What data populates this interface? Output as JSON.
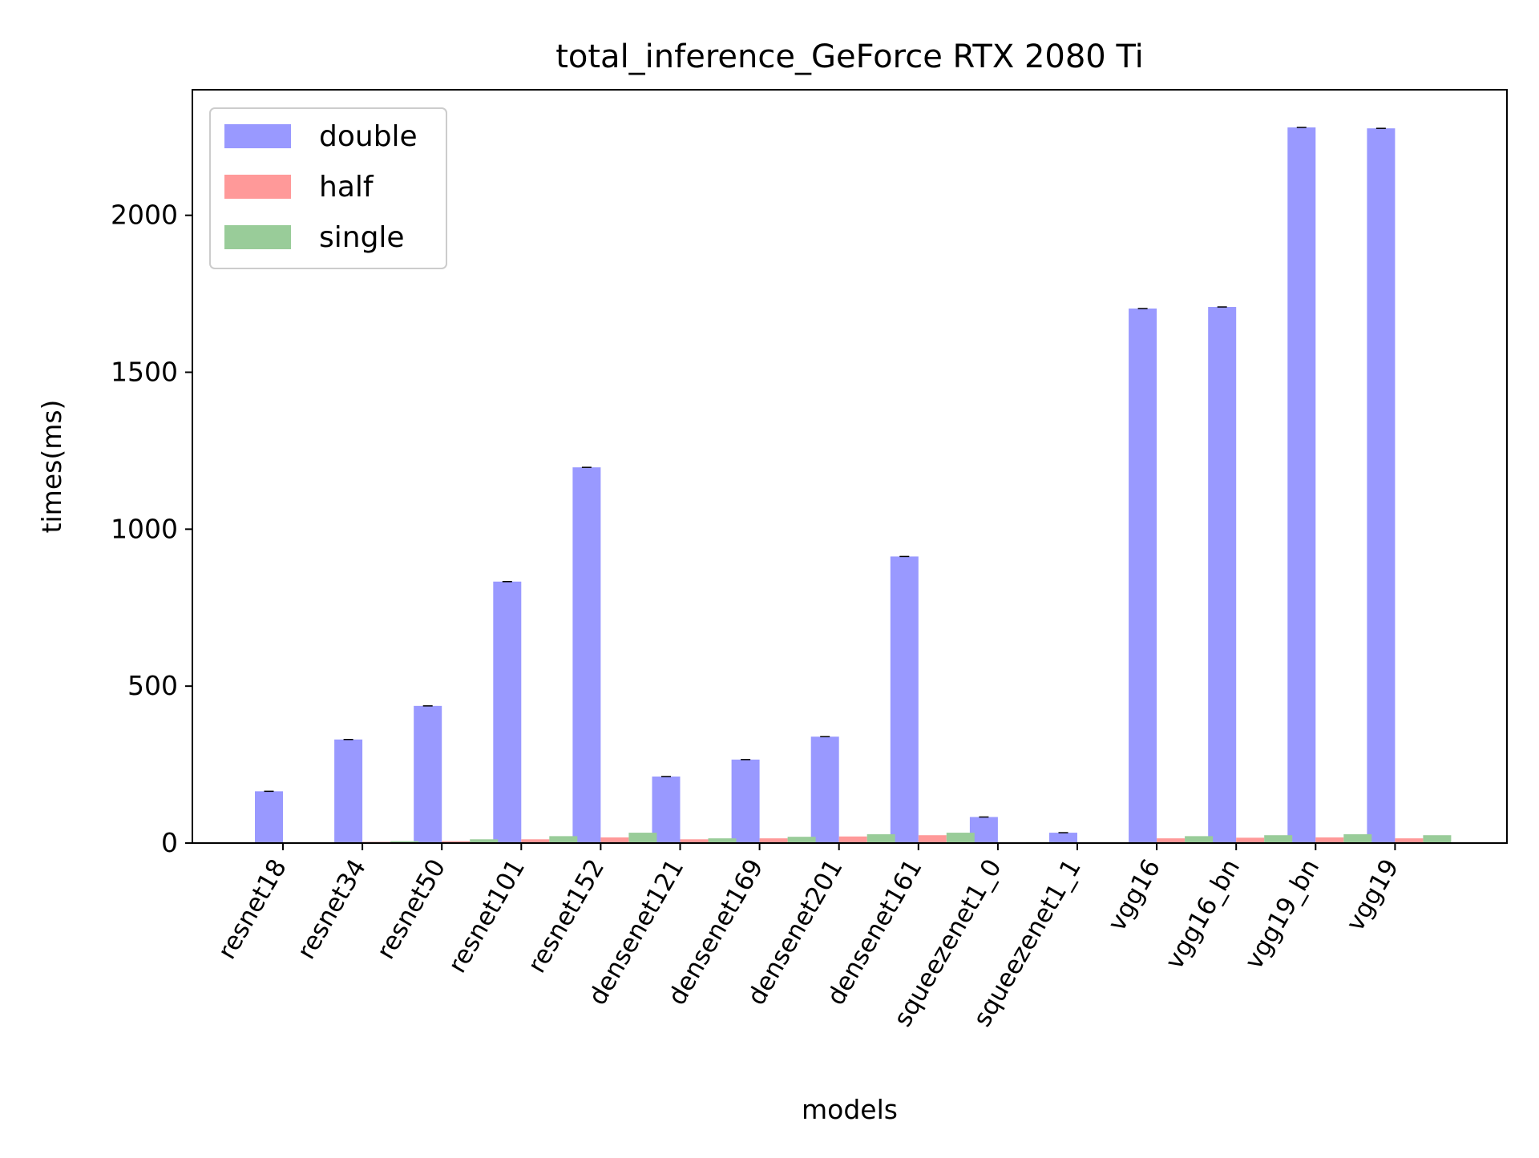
{
  "chart_data": {
    "type": "bar",
    "title": "total_inference_GeForce RTX 2080 Ti",
    "xlabel": "models",
    "ylabel": "times(ms)",
    "ylim": [
      0,
      2400
    ],
    "yticks": [
      0,
      500,
      1000,
      1500,
      2000
    ],
    "grid": false,
    "legend_position": "top-left",
    "categories": [
      "resnet18",
      "resnet34",
      "resnet50",
      "resnet101",
      "resnet152",
      "densenet121",
      "densenet169",
      "densenet201",
      "densenet161",
      "squeezenet1_0",
      "squeezenet1_1",
      "vgg16",
      "vgg16_bn",
      "vgg19_bn",
      "vgg19"
    ],
    "series": [
      {
        "name": "double",
        "color": "#9999ff",
        "values": [
          165,
          330,
          437,
          833,
          1197,
          212,
          266,
          339,
          913,
          83,
          33,
          1703,
          1708,
          2280,
          2277
        ]
      },
      {
        "name": "half",
        "color": "#ff9999",
        "values": [
          1,
          4,
          6,
          12,
          18,
          12,
          15,
          21,
          25,
          2,
          1,
          15,
          17,
          18,
          15
        ]
      },
      {
        "name": "single",
        "color": "#99cc99",
        "values": [
          2,
          6,
          12,
          22,
          33,
          15,
          20,
          28,
          33,
          3,
          2,
          22,
          25,
          28,
          25
        ]
      }
    ]
  }
}
